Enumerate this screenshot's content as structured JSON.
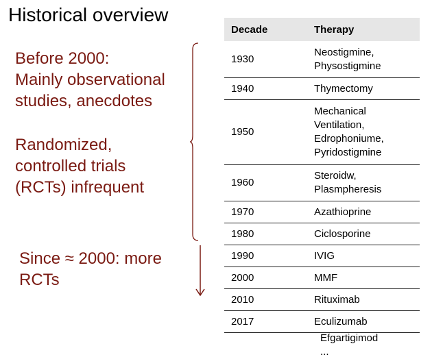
{
  "title": "Historical overview",
  "left": {
    "block1": "Before 2000:\nMainly observational\nstudies, anecdotes",
    "block2": "Randomized,\ncontrolled trials\n(RCTs) infrequent",
    "block3": "Since ≈ 2000: more\nRCTs"
  },
  "table": {
    "headers": [
      "Decade",
      "Therapy"
    ],
    "rows": [
      {
        "decade": "1930",
        "therapy": "Neostigmine,\nPhysostigmine"
      },
      {
        "decade": "1940",
        "therapy": "Thymectomy"
      },
      {
        "decade": "1950",
        "therapy": "Mechanical\nVentilation,\nEdrophoniume,\nPyridostigmine"
      },
      {
        "decade": "1960",
        "therapy": "Steroidw,\nPlasmpheresis"
      },
      {
        "decade": "1970",
        "therapy": "Azathioprine"
      },
      {
        "decade": "1980",
        "therapy": "Ciclosporine"
      },
      {
        "decade": "1990",
        "therapy": "IVIG"
      },
      {
        "decade": "2000",
        "therapy": "MMF"
      },
      {
        "decade": "2010",
        "therapy": "Rituximab"
      },
      {
        "decade": "2017",
        "therapy": "Eculizumab"
      }
    ],
    "trailing": [
      "Efgartigimod",
      "..."
    ]
  },
  "colors": {
    "accent": "#7a1a12",
    "header_bg": "#e6e6e6"
  }
}
